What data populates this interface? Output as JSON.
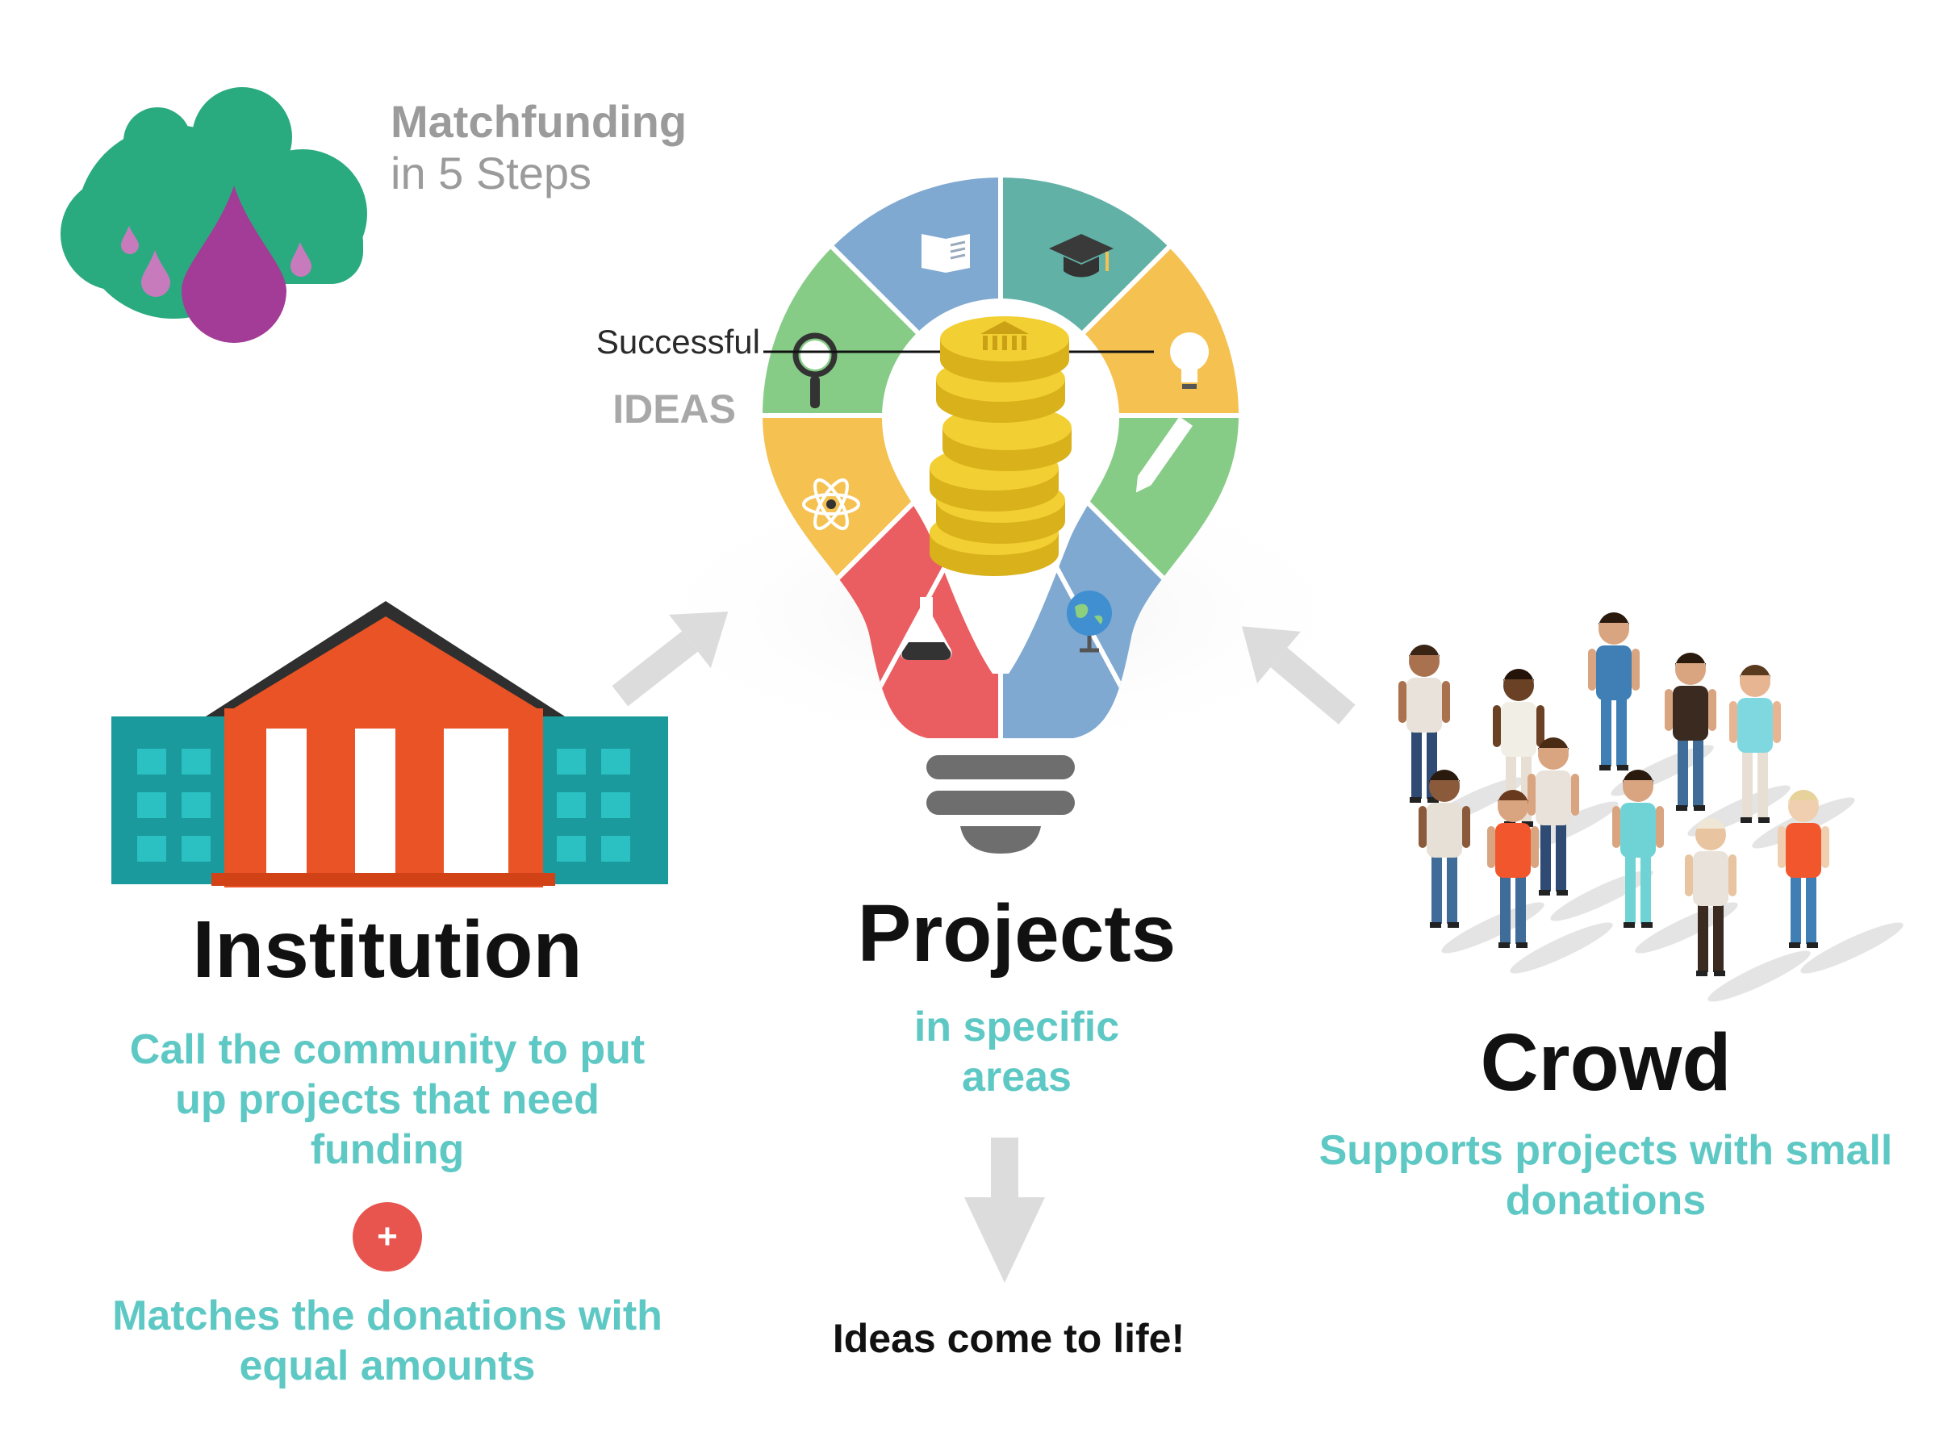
{
  "logo": {
    "title": "Matchfunding",
    "subtitle": "in 5 Steps",
    "icon": "cloud-drop-icon",
    "colors": {
      "cloud": "#2aab7f",
      "drop": "#a23c96"
    }
  },
  "bulb": {
    "label_top": "Successful",
    "label_bottom": "IDEAS",
    "segment_icons": [
      "book-icon",
      "graduation-cap-icon",
      "lightbulb-icon",
      "pencil-icon",
      "globe-icon",
      "flask-icon",
      "atom-icon",
      "magnifier-icon"
    ],
    "segment_colors": [
      "#7fa9d1",
      "#62b1a6",
      "#f5c150",
      "#f5c150",
      "#86cc86",
      "#7fa9d1",
      "#ea5d61",
      "#f5c150",
      "#86cc86"
    ],
    "center_icon": "coin-stack-icon"
  },
  "institution": {
    "title": "Institution",
    "description": "Call the community to put up projects that need funding",
    "plus": "+",
    "match_text": "Matches the donations with equal amounts",
    "icon": "institution-building-icon"
  },
  "projects": {
    "title": "Projects",
    "description": "in specific areas",
    "result": "Ideas come to life!"
  },
  "crowd": {
    "title": "Crowd",
    "description": "Supports projects with small donations",
    "icon": "crowd-people-icon"
  },
  "colors": {
    "accent_teal": "#5ec8c4",
    "heading": "#111111",
    "arrow": "#dcdcdc"
  }
}
